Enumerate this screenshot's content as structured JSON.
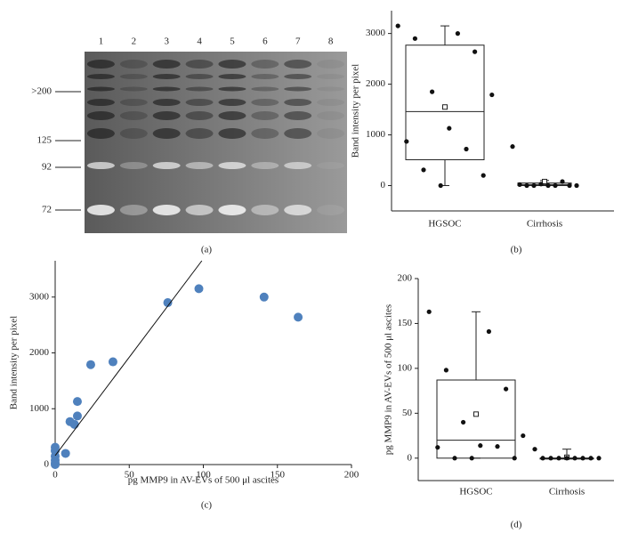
{
  "chart_data": [
    {
      "type": "gel",
      "caption": "(a)",
      "lanes": [
        "1",
        "2",
        "3",
        "4",
        "5",
        "6",
        "7",
        "8"
      ],
      "markers": [
        ">200",
        "125",
        "92",
        "72"
      ]
    },
    {
      "type": "box",
      "caption": "(b)",
      "ylabel": "Band intensity per pixel",
      "ylim": [
        -500,
        3450
      ],
      "yticks": [
        0,
        1000,
        2000,
        3000
      ],
      "categories": [
        "HGSOC",
        "Cirrhosis"
      ],
      "boxes": [
        {
          "q1": 510,
          "median": 1460,
          "q3": 2770,
          "whisker_low": 0,
          "whisker_high": 3150,
          "mean": 1550,
          "points": [
            3150,
            3000,
            2900,
            2640,
            1850,
            1790,
            1130,
            870,
            720,
            310,
            200,
            0
          ]
        },
        {
          "q1": 0,
          "median": 20,
          "q3": 50,
          "whisker_low": 0,
          "whisker_high": 100,
          "mean": 80,
          "points": [
            770,
            80,
            30,
            20,
            0,
            0,
            0,
            0,
            0,
            0
          ]
        }
      ]
    },
    {
      "type": "scatter",
      "caption": "(c)",
      "xlabel": "pg MMP9 in AV-EVs of 500 μl ascites",
      "ylabel": "Band intensity per pixel",
      "xlim": [
        0,
        200
      ],
      "xticks": [
        0,
        50,
        100,
        150,
        200
      ],
      "ylim": [
        0,
        3650
      ],
      "yticks": [
        0,
        1000,
        2000,
        3000
      ],
      "color": "#4f81bd",
      "x": [
        97,
        141,
        76,
        164,
        39,
        24,
        15,
        15,
        10,
        13,
        7,
        0,
        0,
        0,
        0,
        0,
        0
      ],
      "y": [
        3150,
        3000,
        2900,
        2640,
        1840,
        1790,
        1130,
        870,
        770,
        720,
        200,
        310,
        250,
        150,
        80,
        30,
        0
      ],
      "trendline": {
        "x": [
          0,
          99
        ],
        "y": [
          160,
          3650
        ]
      }
    },
    {
      "type": "box",
      "caption": "(d)",
      "ylabel": "pg MMP9 in AV-EVs of 500 μl ascites",
      "ylim": [
        -25,
        200
      ],
      "yticks": [
        0,
        50,
        100,
        150,
        200
      ],
      "categories": [
        "HGSOC",
        "Cirrhosis"
      ],
      "boxes": [
        {
          "q1": 0,
          "median": 20,
          "q3": 87,
          "whisker_low": 0,
          "whisker_high": 163,
          "mean": 49,
          "points": [
            163,
            141,
            98,
            77,
            40,
            25,
            14,
            12,
            13,
            0,
            0,
            0
          ]
        },
        {
          "q1": 0,
          "median": 0,
          "q3": 0,
          "whisker_low": 0,
          "whisker_high": 10,
          "mean": 1,
          "points": [
            10,
            0,
            0,
            0,
            0,
            0,
            0,
            0,
            0
          ]
        }
      ]
    }
  ]
}
